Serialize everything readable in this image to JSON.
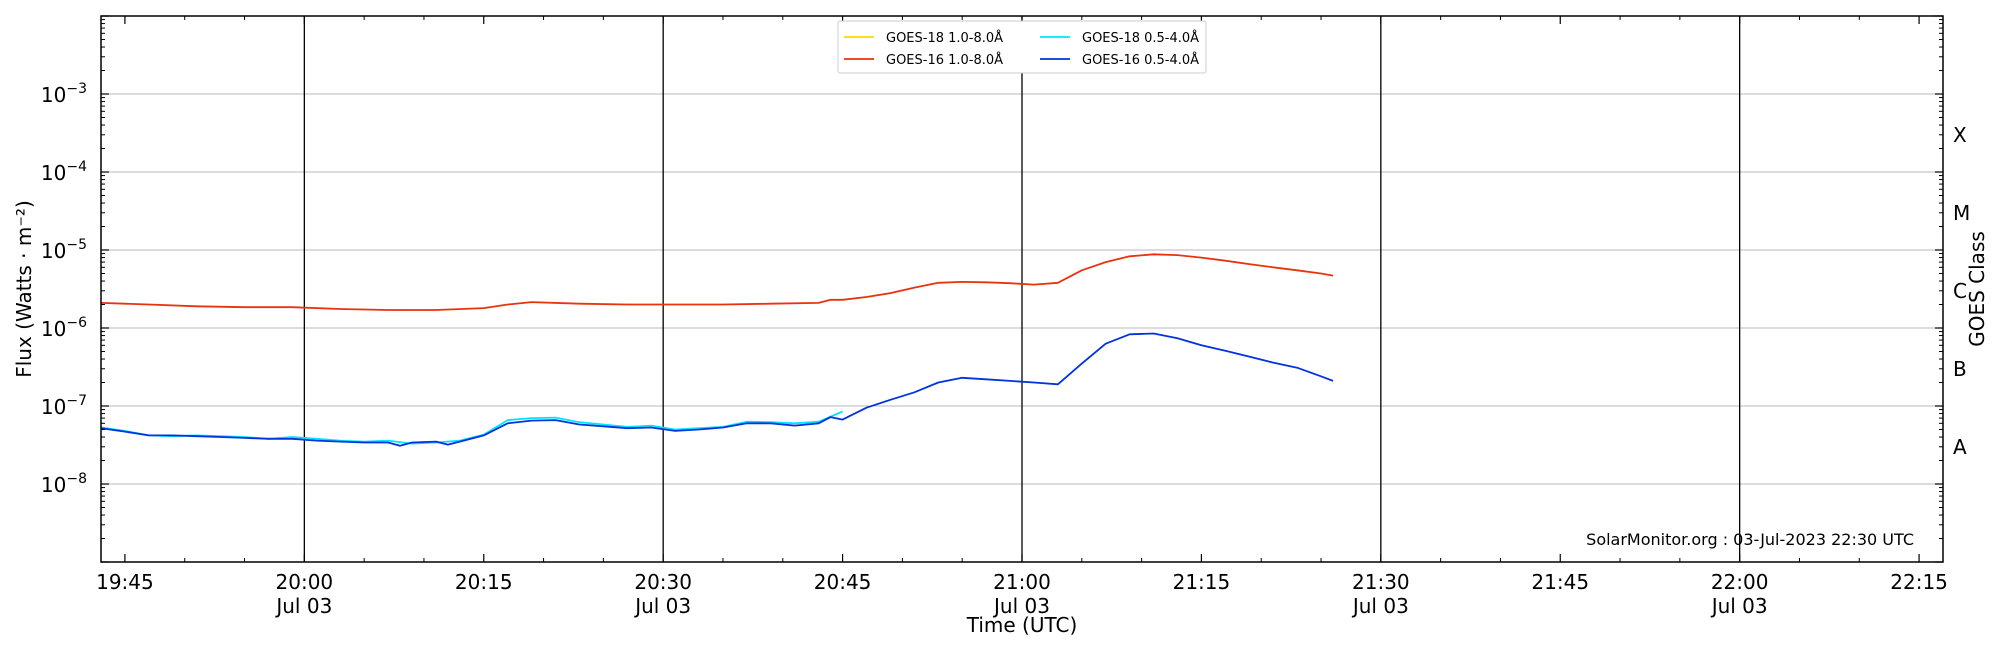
{
  "chart_data": {
    "type": "line",
    "title": "",
    "xlabel": "Time (UTC)",
    "ylabel": "Flux (Watts · m⁻²)",
    "y2label": "GOES Class",
    "yscale": "log",
    "ylim": [
      1e-09,
      0.01
    ],
    "xlim": [
      "19:43",
      "22:17"
    ],
    "x_ticks": [
      {
        "time": "19:45",
        "date": ""
      },
      {
        "time": "20:00",
        "date": "Jul 03"
      },
      {
        "time": "20:15",
        "date": ""
      },
      {
        "time": "20:30",
        "date": "Jul 03"
      },
      {
        "time": "20:45",
        "date": ""
      },
      {
        "time": "21:00",
        "date": "Jul 03"
      },
      {
        "time": "21:15",
        "date": ""
      },
      {
        "time": "21:30",
        "date": "Jul 03"
      },
      {
        "time": "21:45",
        "date": ""
      },
      {
        "time": "22:00",
        "date": "Jul 03"
      },
      {
        "time": "22:15",
        "date": ""
      }
    ],
    "y_ticks": [
      {
        "value": 1e-08,
        "base": "10",
        "exp": "−8"
      },
      {
        "value": 1e-07,
        "base": "10",
        "exp": "−7"
      },
      {
        "value": 1e-06,
        "base": "10",
        "exp": "−6"
      },
      {
        "value": 1e-05,
        "base": "10",
        "exp": "−5"
      },
      {
        "value": 0.0001,
        "base": "10",
        "exp": "−4"
      },
      {
        "value": 0.001,
        "base": "10",
        "exp": "−3"
      }
    ],
    "class_labels": [
      {
        "label": "A",
        "value": 3e-08
      },
      {
        "label": "B",
        "value": 3e-07
      },
      {
        "label": "C",
        "value": 3e-06
      },
      {
        "label": "M",
        "value": 3e-05
      },
      {
        "label": "X",
        "value": 0.0003
      }
    ],
    "grid": {
      "horizontal": true,
      "vertical_at": [
        "20:00",
        "20:30",
        "21:00",
        "21:30",
        "22:00"
      ]
    },
    "legend_position": "top-center",
    "credit": "SolarMonitor.org : 03-Jul-2023 22:30 UTC",
    "series": [
      {
        "name": "GOES-18 1.0-8.0Å",
        "color": "#ffd700",
        "x": [],
        "values": []
      },
      {
        "name": "GOES-18 0.5-4.0Å",
        "color": "#00e5ff",
        "x": [
          "19:43",
          "19:45",
          "19:47",
          "19:49",
          "19:51",
          "19:53",
          "19:55",
          "19:57",
          "19:59",
          "20:01",
          "20:03",
          "20:05",
          "20:07",
          "20:09",
          "20:11",
          "20:13",
          "20:15",
          "20:17",
          "20:19",
          "20:21",
          "20:23",
          "20:25",
          "20:27",
          "20:29",
          "20:31",
          "20:33",
          "20:35",
          "20:37",
          "20:39",
          "20:41",
          "20:43",
          "20:45"
        ],
        "values": [
          5.3e-08,
          4.8e-08,
          4.2e-08,
          4.1e-08,
          4.2e-08,
          4.1e-08,
          4e-08,
          3.8e-08,
          4e-08,
          3.8e-08,
          3.6e-08,
          3.5e-08,
          3.6e-08,
          3.3e-08,
          3.4e-08,
          3.6e-08,
          4.3e-08,
          6.6e-08,
          7e-08,
          7.1e-08,
          6.2e-08,
          5.8e-08,
          5.4e-08,
          5.6e-08,
          5e-08,
          5.2e-08,
          5.4e-08,
          6.3e-08,
          6.2e-08,
          6e-08,
          6.3e-08,
          8.5e-08
        ]
      },
      {
        "name": "GOES-16 1.0-8.0Å",
        "color": "#e8330d",
        "x": [
          "19:43",
          "19:47",
          "19:51",
          "19:55",
          "19:59",
          "20:03",
          "20:07",
          "20:11",
          "20:15",
          "20:17",
          "20:19",
          "20:23",
          "20:27",
          "20:31",
          "20:35",
          "20:39",
          "20:43",
          "20:44",
          "20:45",
          "20:47",
          "20:49",
          "20:51",
          "20:53",
          "20:55",
          "20:57",
          "20:59",
          "21:01",
          "21:03",
          "21:05",
          "21:07",
          "21:09",
          "21:11",
          "21:13",
          "21:15",
          "21:17",
          "21:19",
          "21:21",
          "21:23",
          "21:25",
          "21:26"
        ],
        "values": [
          2.1e-06,
          2e-06,
          1.9e-06,
          1.85e-06,
          1.85e-06,
          1.75e-06,
          1.7e-06,
          1.7e-06,
          1.8e-06,
          2e-06,
          2.15e-06,
          2.05e-06,
          2e-06,
          2e-06,
          2e-06,
          2.05e-06,
          2.1e-06,
          2.3e-06,
          2.3e-06,
          2.5e-06,
          2.8e-06,
          3.3e-06,
          3.8e-06,
          3.9e-06,
          3.85e-06,
          3.75e-06,
          3.6e-06,
          3.8e-06,
          5.5e-06,
          7e-06,
          8.3e-06,
          8.8e-06,
          8.6e-06,
          8e-06,
          7.3e-06,
          6.6e-06,
          6e-06,
          5.5e-06,
          5e-06,
          4.7e-06
        ]
      },
      {
        "name": "GOES-16 0.5-4.0Å",
        "color": "#0033dd",
        "x": [
          "19:43",
          "19:45",
          "19:47",
          "19:49",
          "19:51",
          "19:53",
          "19:55",
          "19:57",
          "19:59",
          "20:01",
          "20:03",
          "20:05",
          "20:07",
          "20:08",
          "20:09",
          "20:11",
          "20:12",
          "20:13",
          "20:15",
          "20:17",
          "20:19",
          "20:21",
          "20:23",
          "20:25",
          "20:27",
          "20:29",
          "20:31",
          "20:33",
          "20:35",
          "20:37",
          "20:39",
          "20:41",
          "20:43",
          "20:44",
          "20:45",
          "20:47",
          "20:49",
          "20:51",
          "20:53",
          "20:55",
          "20:57",
          "20:59",
          "21:01",
          "21:03",
          "21:05",
          "21:07",
          "21:09",
          "21:11",
          "21:13",
          "21:15",
          "21:17",
          "21:19",
          "21:21",
          "21:23",
          "21:25",
          "21:26"
        ],
        "values": [
          5.2e-08,
          4.7e-08,
          4.2e-08,
          4.2e-08,
          4.1e-08,
          4e-08,
          3.9e-08,
          3.8e-08,
          3.8e-08,
          3.6e-08,
          3.5e-08,
          3.4e-08,
          3.4e-08,
          3.1e-08,
          3.4e-08,
          3.5e-08,
          3.2e-08,
          3.5e-08,
          4.2e-08,
          6e-08,
          6.5e-08,
          6.6e-08,
          5.8e-08,
          5.5e-08,
          5.2e-08,
          5.3e-08,
          4.8e-08,
          5e-08,
          5.3e-08,
          6e-08,
          6e-08,
          5.6e-08,
          6e-08,
          7.2e-08,
          6.7e-08,
          9.5e-08,
          1.2e-07,
          1.5e-07,
          2e-07,
          2.3e-07,
          2.2e-07,
          2.1e-07,
          2e-07,
          1.9e-07,
          3.5e-07,
          6.3e-07,
          8.3e-07,
          8.5e-07,
          7.4e-07,
          6e-07,
          5.1e-07,
          4.3e-07,
          3.6e-07,
          3.1e-07,
          2.4e-07,
          2.1e-07
        ]
      }
    ]
  }
}
